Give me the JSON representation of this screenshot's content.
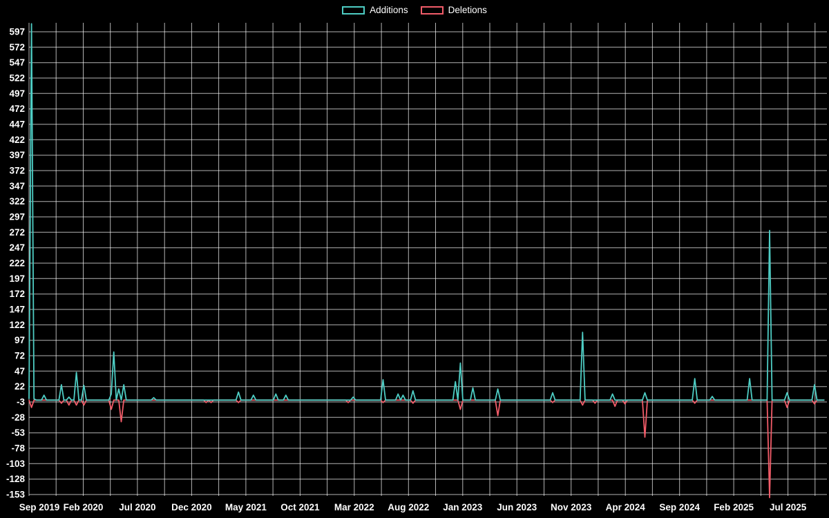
{
  "page": {
    "background": "#000000",
    "text_color": "#ffffff",
    "grid_color": "rgba(255,255,255,0.7)"
  },
  "legend": {
    "items": [
      {
        "label": "Additions",
        "color": "#4ecdc4"
      },
      {
        "label": "Deletions",
        "color": "#f25c69"
      }
    ]
  },
  "chart_data": {
    "type": "line",
    "title": "",
    "legend_position": "top",
    "grid": true,
    "x_axis": {
      "tick_labels": [
        "Sep 2019",
        "Feb 2020",
        "Jul 2020",
        "Dec 2020",
        "May 2021",
        "Oct 2021",
        "Mar 2022",
        "Aug 2022",
        "Jan 2023",
        "Jun 2023",
        "Nov 2023",
        "Apr 2024",
        "Sep 2024",
        "Feb 2025",
        "Jul 2025"
      ],
      "months_per_tick": 5
    },
    "y_axis": {
      "min": -153,
      "max": 597,
      "step": 25,
      "tick_values": [
        597,
        572,
        547,
        522,
        497,
        472,
        447,
        422,
        397,
        372,
        347,
        322,
        297,
        272,
        247,
        222,
        197,
        172,
        147,
        122,
        97,
        72,
        47,
        22,
        -3,
        -28,
        -53,
        -78,
        -103,
        -128,
        -153
      ]
    },
    "total_weeks": 320,
    "baseline": 0,
    "series": [
      {
        "name": "Additions",
        "color": "#4ecdc4",
        "points": [
          [
            0,
            2
          ],
          [
            1,
            610
          ],
          [
            2,
            2
          ],
          [
            6,
            8
          ],
          [
            13,
            25
          ],
          [
            16,
            5
          ],
          [
            19,
            45
          ],
          [
            22,
            24
          ],
          [
            33,
            10
          ],
          [
            34,
            78
          ],
          [
            36,
            18
          ],
          [
            38,
            25
          ],
          [
            50,
            4
          ],
          [
            84,
            13
          ],
          [
            90,
            8
          ],
          [
            99,
            10
          ],
          [
            103,
            8
          ],
          [
            130,
            5
          ],
          [
            142,
            33
          ],
          [
            148,
            10
          ],
          [
            150,
            8
          ],
          [
            154,
            15
          ],
          [
            171,
            30
          ],
          [
            173,
            60
          ],
          [
            178,
            20
          ],
          [
            188,
            18
          ],
          [
            210,
            12
          ],
          [
            222,
            110
          ],
          [
            234,
            10
          ],
          [
            247,
            12
          ],
          [
            267,
            35
          ],
          [
            274,
            6
          ],
          [
            289,
            35
          ],
          [
            297,
            275
          ],
          [
            304,
            12
          ],
          [
            315,
            25
          ]
        ]
      },
      {
        "name": "Deletions",
        "color": "#f25c69",
        "points": [
          [
            1,
            -12
          ],
          [
            13,
            -5
          ],
          [
            16,
            -8
          ],
          [
            19,
            -8
          ],
          [
            22,
            -8
          ],
          [
            33,
            -15
          ],
          [
            37,
            -35
          ],
          [
            71,
            -4
          ],
          [
            73,
            -4
          ],
          [
            84,
            -4
          ],
          [
            128,
            -4
          ],
          [
            142,
            -4
          ],
          [
            154,
            -5
          ],
          [
            173,
            -15
          ],
          [
            188,
            -25
          ],
          [
            210,
            -4
          ],
          [
            222,
            -8
          ],
          [
            227,
            -5
          ],
          [
            235,
            -10
          ],
          [
            239,
            -6
          ],
          [
            247,
            -60
          ],
          [
            267,
            -5
          ],
          [
            297,
            -158
          ],
          [
            304,
            -12
          ],
          [
            315,
            -6
          ]
        ]
      }
    ]
  }
}
